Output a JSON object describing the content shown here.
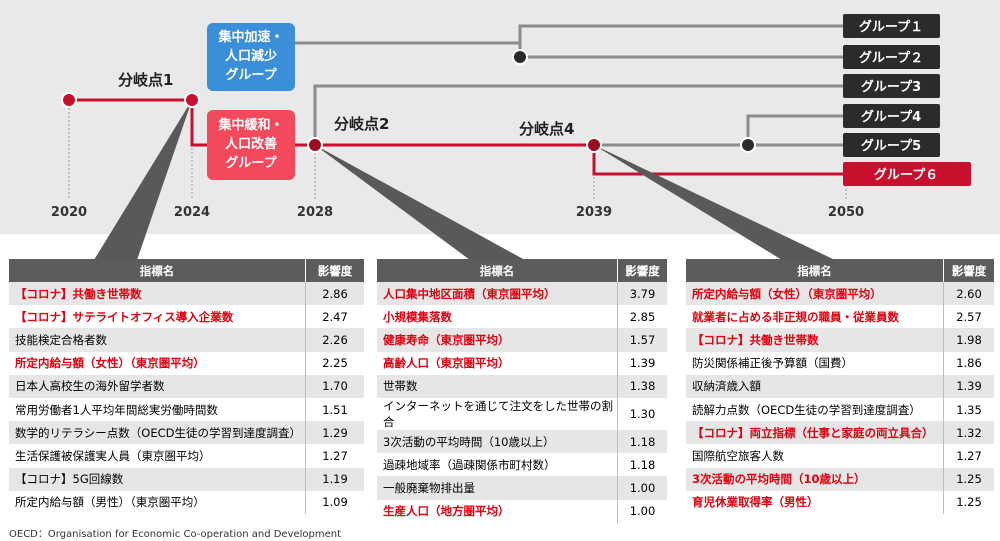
{
  "timeline": {
    "years": [
      "2020",
      "2024",
      "2028",
      "2039",
      "2050"
    ],
    "branch_points": [
      "分岐点1",
      "分岐点2",
      "分岐点4"
    ],
    "group_box_upper": [
      "集中加速・",
      "人口減少",
      "グループ"
    ],
    "group_box_lower": [
      "集中緩和・",
      "人口改善",
      "グループ"
    ],
    "groups": [
      "グループ１",
      "グループ２",
      "グループ3",
      "グループ4",
      "グループ5",
      "グループ６"
    ],
    "colors": {
      "red": "#c8102e",
      "gray": "#8c8c8c",
      "blue": "#3b8fd9",
      "dark": "#2b2b2b",
      "bg": "#e9e9e9",
      "cone": "#595959"
    }
  },
  "tables": [
    {
      "header": {
        "name": "指標名",
        "score": "影響度"
      },
      "rows": [
        {
          "name": "【コロナ】共働き世帯数",
          "score": "2.86",
          "highlight": true
        },
        {
          "name": "【コロナ】サテライトオフィス導入企業数",
          "score": "2.47",
          "highlight": true
        },
        {
          "name": "技能検定合格者数",
          "score": "2.26",
          "highlight": false
        },
        {
          "name": "所定内給与額（女性）（東京圏平均）",
          "score": "2.25",
          "highlight": true
        },
        {
          "name": "日本人高校生の海外留学者数",
          "score": "1.70",
          "highlight": false
        },
        {
          "name": "常用労働者1人平均年間総実労働時間数",
          "score": "1.51",
          "highlight": false
        },
        {
          "name": "数学的リテラシー点数（OECD生徒の学習到達度調査）",
          "score": "1.29",
          "highlight": false
        },
        {
          "name": "生活保護被保護実人員（東京圏平均）",
          "score": "1.27",
          "highlight": false
        },
        {
          "name": "【コロナ】5G回線数",
          "score": "1.19",
          "highlight": false
        },
        {
          "name": "所定内給与額（男性）（東京圏平均）",
          "score": "1.09",
          "highlight": false
        }
      ]
    },
    {
      "header": {
        "name": "指標名",
        "score": "影響度"
      },
      "rows": [
        {
          "name": "人口集中地区面積（東京圏平均）",
          "score": "3.79",
          "highlight": true
        },
        {
          "name": "小規模集落数",
          "score": "2.85",
          "highlight": true
        },
        {
          "name": "健康寿命（東京圏平均）",
          "score": "1.57",
          "highlight": true
        },
        {
          "name": "高齢人口（東京圏平均）",
          "score": "1.39",
          "highlight": true
        },
        {
          "name": "世帯数",
          "score": "1.38",
          "highlight": false
        },
        {
          "name": "インターネットを通じて注文をした世帯の割合",
          "score": "1.30",
          "highlight": false
        },
        {
          "name": "3次活動の平均時間（10歳以上）",
          "score": "1.18",
          "highlight": false
        },
        {
          "name": "過疎地域率（過疎関係市町村数）",
          "score": "1.18",
          "highlight": false
        },
        {
          "name": "一般廃棄物排出量",
          "score": "1.00",
          "highlight": false
        },
        {
          "name": "生産人口（地方圏平均）",
          "score": "1.00",
          "highlight": true
        }
      ]
    },
    {
      "header": {
        "name": "指標名",
        "score": "影響度"
      },
      "rows": [
        {
          "name": "所定内給与額（女性）（東京圏平均）",
          "score": "2.60",
          "highlight": true
        },
        {
          "name": "就業者に占める非正規の職員・従業員数",
          "score": "2.57",
          "highlight": true
        },
        {
          "name": "【コロナ】共働き世帯数",
          "score": "1.98",
          "highlight": true
        },
        {
          "name": "防災関係補正後予算額（国費）",
          "score": "1.86",
          "highlight": false
        },
        {
          "name": "収納済歳入額",
          "score": "1.39",
          "highlight": false
        },
        {
          "name": "読解力点数（OECD生徒の学習到達度調査）",
          "score": "1.35",
          "highlight": false
        },
        {
          "name": "【コロナ】両立指標（仕事と家庭の両立具合）",
          "score": "1.32",
          "highlight": true
        },
        {
          "name": "国際航空旅客人数",
          "score": "1.27",
          "highlight": false
        },
        {
          "name": "3次活動の平均時間（10歳以上）",
          "score": "1.25",
          "highlight": true
        },
        {
          "name": "育児休業取得率（男性）",
          "score": "1.25",
          "highlight": true
        }
      ]
    }
  ],
  "footnote": "OECD：Organisation for Economic Co-operation and Development"
}
